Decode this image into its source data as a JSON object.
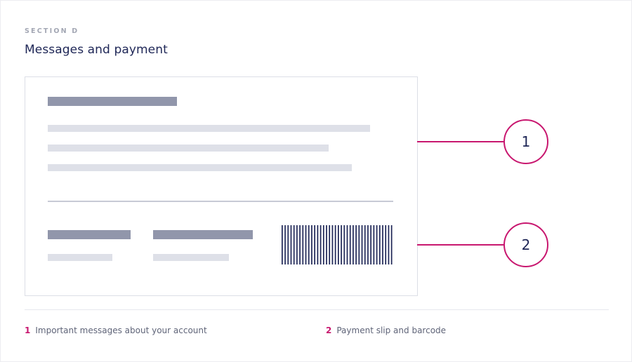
{
  "header": {
    "section_label": "SECTION D",
    "title": "Messages and payment"
  },
  "callouts": [
    {
      "number": "1",
      "description": "Important messages about your account"
    },
    {
      "number": "2",
      "description": "Payment slip and barcode"
    }
  ],
  "colors": {
    "accent": "#c8176f",
    "title": "#1e2656",
    "placeholder_dark": "#9196ab",
    "placeholder_light": "#dee0e8",
    "barcode": "#1e2656"
  },
  "icons": {
    "barcode": "barcode-icon"
  }
}
